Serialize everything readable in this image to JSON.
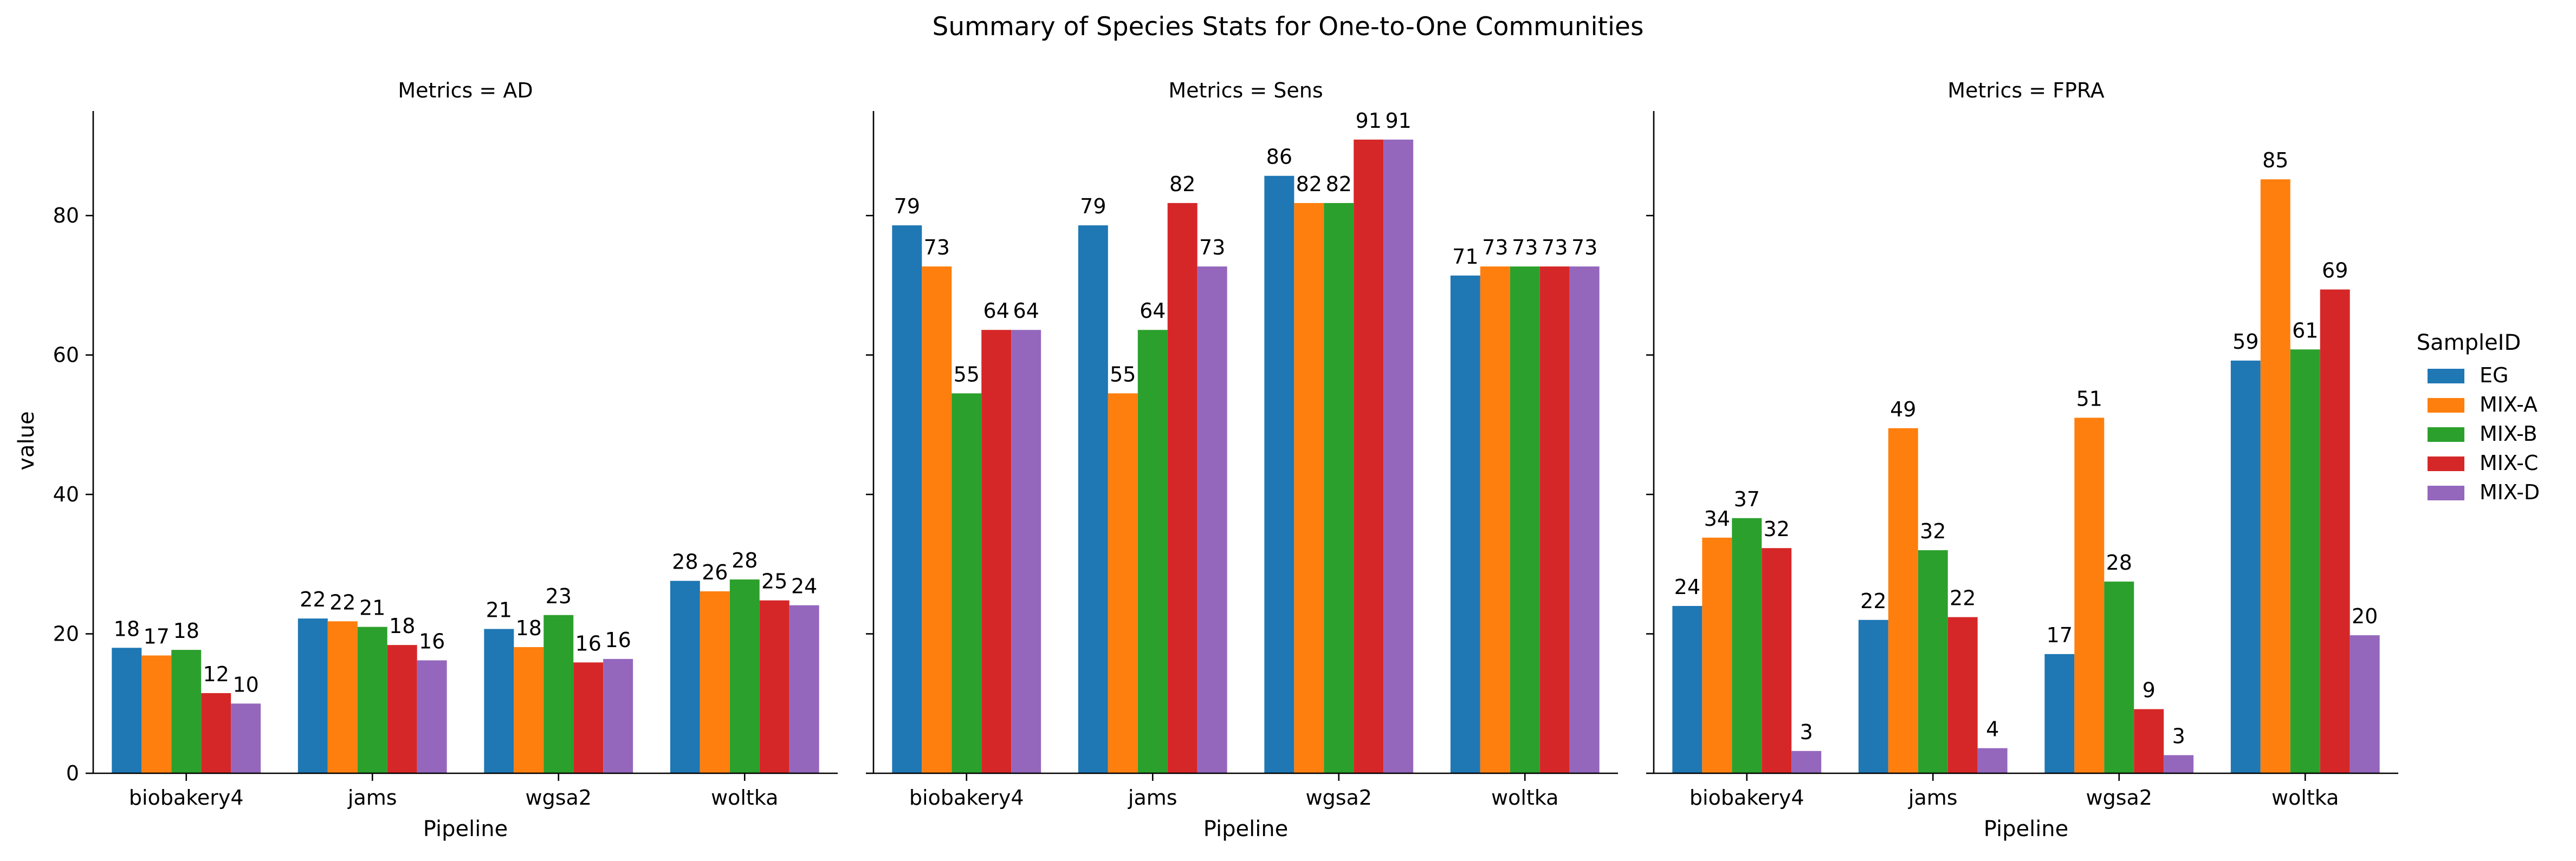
{
  "chart_data": {
    "type": "bar",
    "title": "Summary of Species Stats for One-to-One Communities",
    "xlabel": "Pipeline",
    "ylabel": "value",
    "ylim": [
      0,
      95
    ],
    "yticks": [
      0,
      20,
      40,
      60,
      80
    ],
    "categories": [
      "biobakery4",
      "jams",
      "wgsa2",
      "woltka"
    ],
    "legend": {
      "title": "SampleID",
      "placement": "right",
      "entries": [
        "EG",
        "MIX-A",
        "MIX-B",
        "MIX-C",
        "MIX-D"
      ]
    },
    "series_colors": {
      "EG": "#1f77b4",
      "MIX-A": "#ff7f0e",
      "MIX-B": "#2ca02c",
      "MIX-C": "#d62728",
      "MIX-D": "#9467bd"
    },
    "panels": [
      {
        "title": "Metrics = AD",
        "series": [
          {
            "name": "EG",
            "values": [
              18.0,
              22.2,
              20.7,
              27.6
            ]
          },
          {
            "name": "MIX-A",
            "values": [
              16.9,
              21.8,
              18.1,
              26.1
            ]
          },
          {
            "name": "MIX-B",
            "values": [
              17.7,
              21.0,
              22.7,
              27.8
            ]
          },
          {
            "name": "MIX-C",
            "values": [
              11.5,
              18.4,
              15.9,
              24.8
            ]
          },
          {
            "name": "MIX-D",
            "values": [
              10.0,
              16.2,
              16.4,
              24.1
            ]
          }
        ],
        "labels": [
          [
            "18",
            "22",
            "21",
            "28"
          ],
          [
            "17",
            "22",
            "18",
            "26"
          ],
          [
            "18",
            "21",
            "23",
            "28"
          ],
          [
            "12",
            "18",
            "16",
            "25"
          ],
          [
            "10",
            "16",
            "16",
            "24"
          ]
        ]
      },
      {
        "title": "Metrics = Sens",
        "series": [
          {
            "name": "EG",
            "values": [
              78.6,
              78.6,
              85.7,
              71.4
            ]
          },
          {
            "name": "MIX-A",
            "values": [
              72.7,
              54.5,
              81.8,
              72.7
            ]
          },
          {
            "name": "MIX-B",
            "values": [
              54.5,
              63.6,
              81.8,
              72.7
            ]
          },
          {
            "name": "MIX-C",
            "values": [
              63.6,
              81.8,
              90.9,
              72.7
            ]
          },
          {
            "name": "MIX-D",
            "values": [
              63.6,
              72.7,
              90.9,
              72.7
            ]
          }
        ],
        "labels": [
          [
            "79",
            "79",
            "86",
            "71"
          ],
          [
            "73",
            "55",
            "82",
            "73"
          ],
          [
            "55",
            "64",
            "82",
            "73"
          ],
          [
            "64",
            "82",
            "91",
            "73"
          ],
          [
            "64",
            "73",
            "91",
            "73"
          ]
        ]
      },
      {
        "title": "Metrics = FPRA",
        "series": [
          {
            "name": "EG",
            "values": [
              24.0,
              22.0,
              17.1,
              59.2
            ]
          },
          {
            "name": "MIX-A",
            "values": [
              33.8,
              49.5,
              51.0,
              85.2
            ]
          },
          {
            "name": "MIX-B",
            "values": [
              36.6,
              32.0,
              27.5,
              60.8
            ]
          },
          {
            "name": "MIX-C",
            "values": [
              32.3,
              22.4,
              9.2,
              69.4
            ]
          },
          {
            "name": "MIX-D",
            "values": [
              3.2,
              3.6,
              2.6,
              19.8
            ]
          }
        ],
        "labels": [
          [
            "24",
            "22",
            "17",
            "59"
          ],
          [
            "34",
            "49",
            "51",
            "85"
          ],
          [
            "37",
            "32",
            "28",
            "61"
          ],
          [
            "32",
            "22",
            "9",
            "69"
          ],
          [
            "3",
            "4",
            "3",
            "20"
          ]
        ]
      }
    ]
  }
}
